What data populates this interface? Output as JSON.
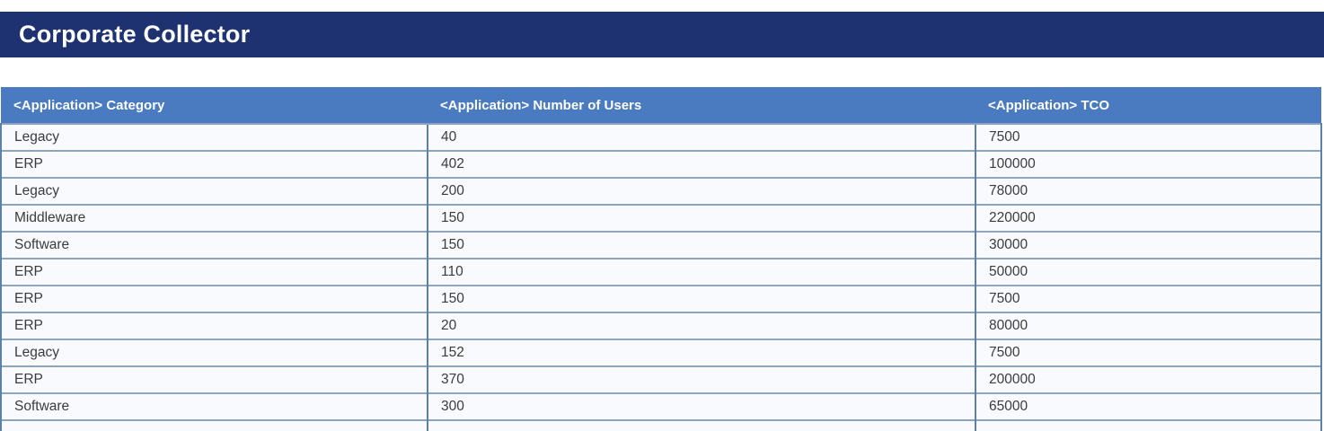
{
  "title_bar": {
    "title": "Corporate Collector"
  },
  "table": {
    "columns": [
      {
        "label": "<Application> Category"
      },
      {
        "label": "<Application> Number of Users"
      },
      {
        "label": "<Application> TCO"
      }
    ],
    "rows": [
      {
        "category": "Legacy",
        "users": "40",
        "tco": "7500"
      },
      {
        "category": "ERP",
        "users": "402",
        "tco": "100000"
      },
      {
        "category": "Legacy",
        "users": "200",
        "tco": "78000"
      },
      {
        "category": "Middleware",
        "users": "150",
        "tco": "220000"
      },
      {
        "category": "Software",
        "users": "150",
        "tco": "30000"
      },
      {
        "category": "ERP",
        "users": "110",
        "tco": "50000"
      },
      {
        "category": "ERP",
        "users": "150",
        "tco": "7500"
      },
      {
        "category": "ERP",
        "users": "20",
        "tco": "80000"
      },
      {
        "category": "Legacy",
        "users": "152",
        "tco": "7500"
      },
      {
        "category": "ERP",
        "users": "370",
        "tco": "200000"
      },
      {
        "category": "Software",
        "users": "300",
        "tco": "65000"
      },
      {
        "category": "",
        "users": "",
        "tco": ""
      }
    ]
  },
  "colors": {
    "navy": "#1e3272",
    "header-bg": "#4a7ac0",
    "row-bg": "#f8fafd",
    "border-h": "#8ca4bf",
    "border-v": "#5b80aa",
    "cell-text": "#3b3b3b"
  }
}
